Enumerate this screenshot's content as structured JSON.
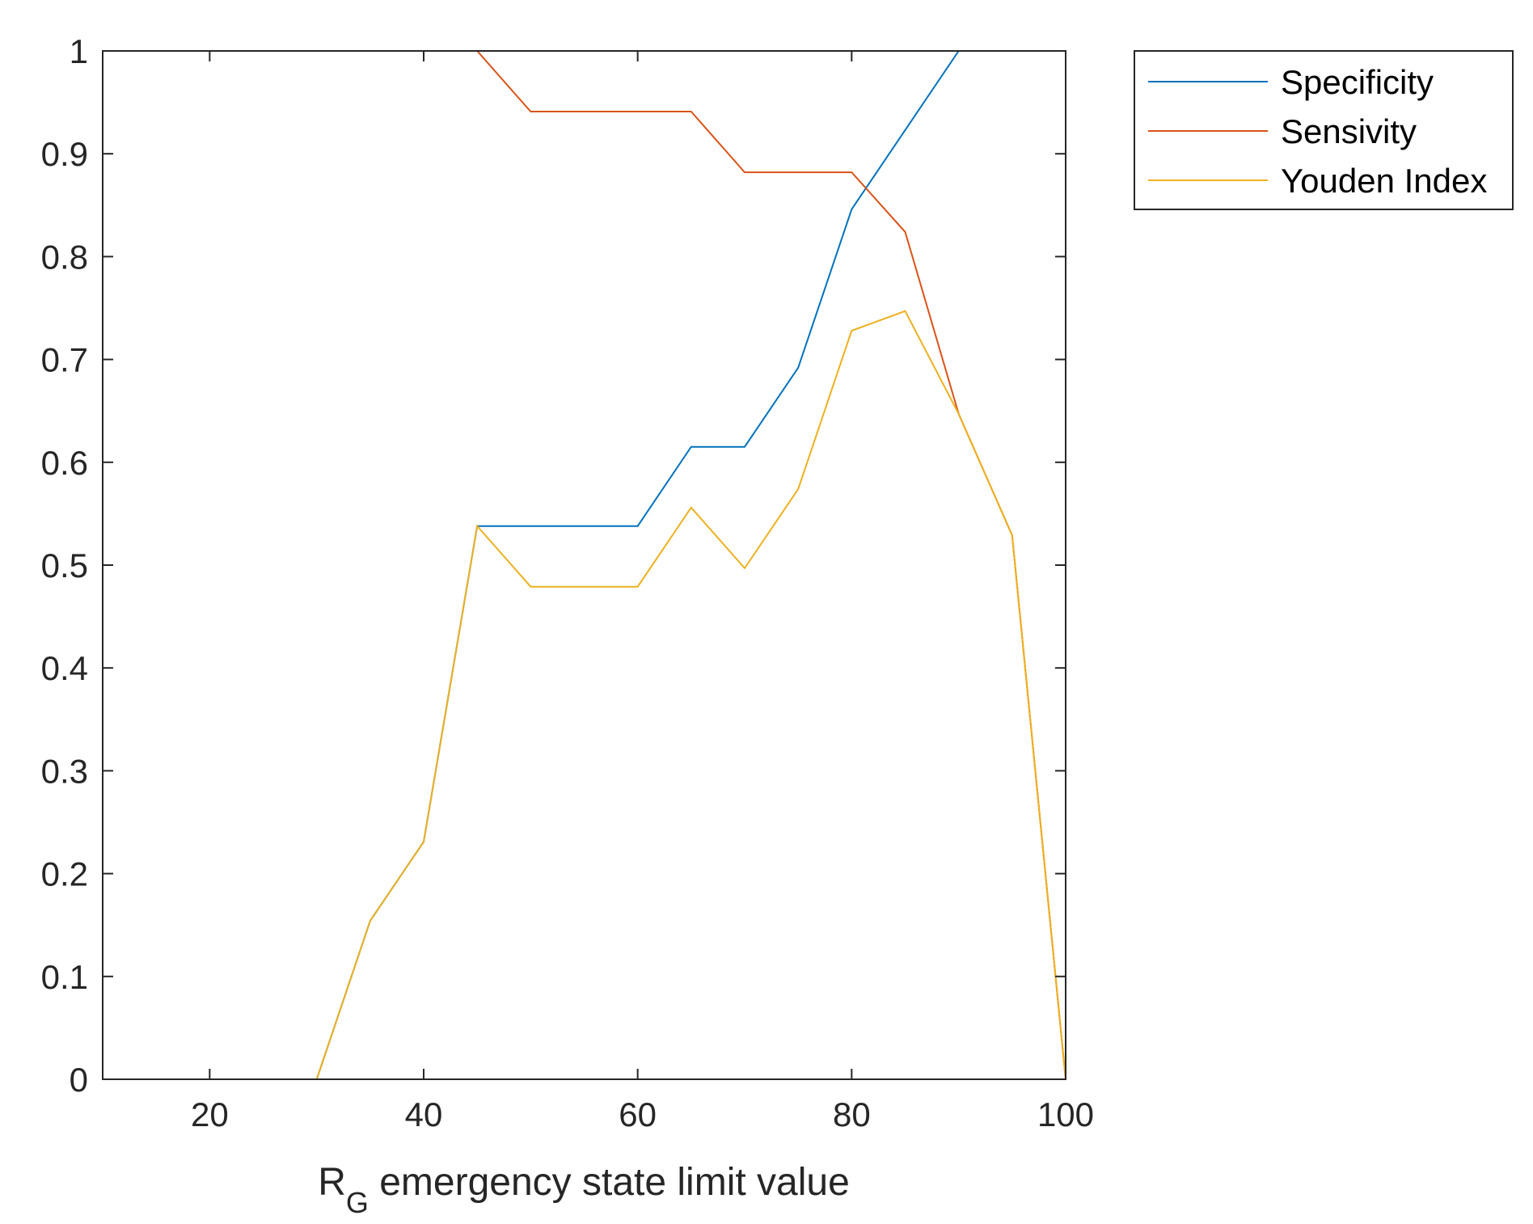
{
  "chart_data": {
    "type": "line",
    "title": "",
    "xlabel": {
      "main": "R",
      "subscript": "G",
      "rest": " emergency state limit value"
    },
    "ylabel": "",
    "xlim": [
      10,
      100
    ],
    "ylim": [
      0,
      1
    ],
    "xticks": [
      20,
      40,
      60,
      80,
      100
    ],
    "yticks": [
      0,
      0.1,
      0.2,
      0.3,
      0.4,
      0.5,
      0.6,
      0.7,
      0.8,
      0.9,
      1
    ],
    "xtick_labels": [
      "20",
      "40",
      "60",
      "80",
      "100"
    ],
    "ytick_labels": [
      "0",
      "0.1",
      "0.2",
      "0.3",
      "0.4",
      "0.5",
      "0.6",
      "0.7",
      "0.8",
      "0.9",
      "1"
    ],
    "grid": false,
    "legend_position": "outside-top-right",
    "x": [
      10,
      15,
      20,
      25,
      30,
      35,
      40,
      45,
      50,
      55,
      60,
      65,
      70,
      75,
      80,
      85,
      90,
      95,
      100
    ],
    "series": [
      {
        "name": "Specificity",
        "color": "#0072BD",
        "values": [
          0,
          0,
          0,
          0,
          0,
          0.154,
          0.231,
          0.538,
          0.538,
          0.538,
          0.538,
          0.615,
          0.615,
          0.692,
          0.846,
          0.923,
          1,
          1,
          1
        ]
      },
      {
        "name": "Sensivity",
        "color": "#D95319",
        "values": [
          1,
          1,
          1,
          1,
          1,
          1,
          1,
          1,
          0.941,
          0.941,
          0.941,
          0.941,
          0.882,
          0.882,
          0.882,
          0.824,
          0.647,
          0.529,
          0
        ]
      },
      {
        "name": "Youden Index",
        "color": "#EDB120",
        "values": [
          0,
          0,
          0,
          0,
          0,
          0.154,
          0.231,
          0.538,
          0.479,
          0.479,
          0.479,
          0.556,
          0.497,
          0.574,
          0.728,
          0.747,
          0.647,
          0.529,
          0
        ]
      }
    ]
  }
}
